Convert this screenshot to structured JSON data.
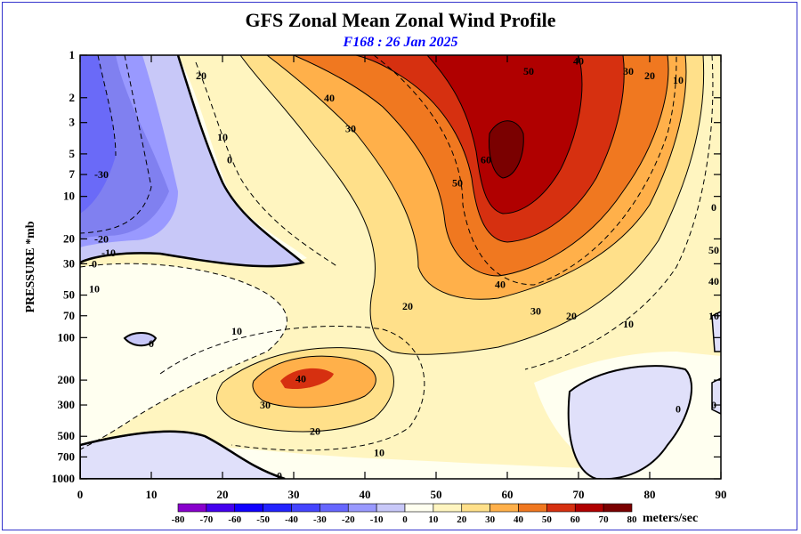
{
  "header": {
    "title": "GFS Zonal Mean Zonal Wind Profile",
    "subtitle": "F168 : 26 Jan 2025"
  },
  "chart_data": {
    "type": "heatmap",
    "xlabel": "",
    "ylabel": "PRESSURE *mb",
    "x_ticks": [
      0,
      10,
      20,
      30,
      40,
      50,
      60,
      70,
      80,
      90
    ],
    "y_ticks": [
      1,
      2,
      3,
      5,
      7,
      10,
      20,
      30,
      50,
      70,
      100,
      200,
      300,
      500,
      700,
      1000
    ],
    "y_scale": "log",
    "xlim": [
      0,
      90
    ],
    "ylim": [
      1000,
      1
    ],
    "units": "meters/sec",
    "legend_levels": [
      -80,
      -70,
      -60,
      -50,
      -40,
      -30,
      -20,
      -10,
      0,
      10,
      20,
      30,
      40,
      50,
      60,
      70,
      80
    ],
    "legend_colors": [
      "#8800cc",
      "#4400ee",
      "#1100ff",
      "#2222ff",
      "#4444ff",
      "#6666ff",
      "#9999ff",
      "#c8c8f8",
      "#fffff0",
      "#fff5c0",
      "#ffe08a",
      "#ffb04a",
      "#f07820",
      "#d63010",
      "#b00000",
      "#7a0000",
      "#8a7a30"
    ],
    "contour_labels": [
      {
        "x": 3,
        "y": 7,
        "text": "-30"
      },
      {
        "x": 3,
        "y": 20,
        "text": "-20"
      },
      {
        "x": 4,
        "y": 25,
        "text": "-10"
      },
      {
        "x": 2,
        "y": 30,
        "text": "0"
      },
      {
        "x": 2,
        "y": 45,
        "text": "10"
      },
      {
        "x": 10,
        "y": 110,
        "text": "0"
      },
      {
        "x": 17,
        "y": 1.4,
        "text": "20"
      },
      {
        "x": 20,
        "y": 3.8,
        "text": "10"
      },
      {
        "x": 21,
        "y": 5.5,
        "text": "0"
      },
      {
        "x": 35,
        "y": 2,
        "text": "40"
      },
      {
        "x": 38,
        "y": 3.3,
        "text": "30"
      },
      {
        "x": 53,
        "y": 8,
        "text": "50"
      },
      {
        "x": 57,
        "y": 5.5,
        "text": "60"
      },
      {
        "x": 63,
        "y": 1.3,
        "text": "50"
      },
      {
        "x": 70,
        "y": 1.1,
        "text": "40"
      },
      {
        "x": 77,
        "y": 1.3,
        "text": "30"
      },
      {
        "x": 80,
        "y": 1.4,
        "text": "20"
      },
      {
        "x": 84,
        "y": 1.5,
        "text": "10"
      },
      {
        "x": 59,
        "y": 42,
        "text": "40"
      },
      {
        "x": 64,
        "y": 65,
        "text": "30"
      },
      {
        "x": 69,
        "y": 70,
        "text": "20"
      },
      {
        "x": 77,
        "y": 80,
        "text": "10"
      },
      {
        "x": 89,
        "y": 12,
        "text": "0"
      },
      {
        "x": 89,
        "y": 24,
        "text": "50"
      },
      {
        "x": 89,
        "y": 40,
        "text": "40"
      },
      {
        "x": 89,
        "y": 70,
        "text": "10"
      },
      {
        "x": 89,
        "y": 300,
        "text": "0"
      },
      {
        "x": 84,
        "y": 320,
        "text": "0"
      },
      {
        "x": 46,
        "y": 60,
        "text": "20"
      },
      {
        "x": 22,
        "y": 90,
        "text": "10"
      },
      {
        "x": 31,
        "y": 195,
        "text": "40"
      },
      {
        "x": 26,
        "y": 300,
        "text": "30"
      },
      {
        "x": 33,
        "y": 460,
        "text": "20"
      },
      {
        "x": 42,
        "y": 650,
        "text": "10"
      },
      {
        "x": 28,
        "y": 950,
        "text": "0"
      }
    ]
  }
}
